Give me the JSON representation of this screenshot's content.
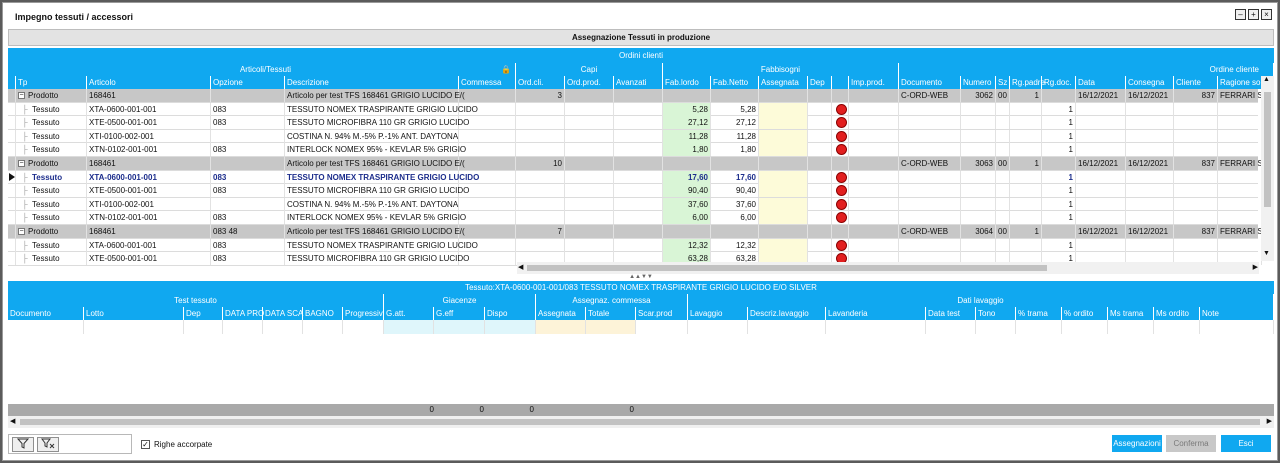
{
  "window": {
    "title": "Impegno tessuti / accessori",
    "controls": [
      "minimize",
      "restore",
      "close"
    ]
  },
  "panel": {
    "title": "Assegnazione Tessuti  in produzione"
  },
  "upper": {
    "section_title": "Ordini clienti",
    "groups": {
      "articoli": "Articoli/Tessuti",
      "capi": "Capi",
      "fabbisogni": "Fabbisogni",
      "ordine": "Ordine cliente"
    },
    "columns": {
      "tp": "Tp",
      "articolo": "Articolo",
      "opzione": "Opzione",
      "descrizione": "Descrizione",
      "commessa": "Commessa",
      "ord_cli": "Ord.cli.",
      "ord_prod": "Ord.prod.",
      "avanzati": "Avanzati",
      "fab_lordo": "Fab.lordo",
      "fab_netto": "Fab.Netto",
      "assegnata": "Assegnata",
      "dep": "Dep",
      "imp_prod": "Imp.prod.",
      "documento": "Documento",
      "numero": "Numero",
      "sz": "Sz",
      "rg_padre": "Rg.padre",
      "rg_doc": "Rg.doc.",
      "data": "Data",
      "consegna": "Consegna",
      "cliente": "Cliente",
      "ragione": "Ragione so"
    },
    "rows": [
      {
        "tp": "Prodotto",
        "articolo": "168461",
        "opzione": "",
        "descrizione": "Articolo per test TFS 168461 GRIGIO LUCIDO E/(",
        "ord_cli": "3",
        "fab_lordo": "",
        "fab_netto": "",
        "documento": "C-ORD-WEB",
        "numero": "3062",
        "sz": "00",
        "rg_padre": "1",
        "data": "16/12/2021",
        "consegna": "16/12/2021",
        "cliente": "837",
        "ragione": "FERRARI SI"
      },
      {
        "tp": "Tessuto",
        "articolo": "XTA-0600-001-001",
        "opzione": "083",
        "descrizione": "TESSUTO NOMEX TRASPIRANTE GRIGIO LUCIDO",
        "ord_cli": "",
        "fab_lordo": "5,28",
        "fab_netto": "5,28",
        "documento": "",
        "numero": "",
        "sz": "",
        "rg_padre": "",
        "rg_doc": "1",
        "data": "",
        "consegna": "",
        "cliente": "",
        "ragione": ""
      },
      {
        "tp": "Tessuto",
        "articolo": "XTE-0500-001-001",
        "opzione": "083",
        "descrizione": "TESSUTO MICROFIBRA 110 GR GRIGIO LUCIDO",
        "ord_cli": "",
        "fab_lordo": "27,12",
        "fab_netto": "27,12",
        "rg_doc": "1"
      },
      {
        "tp": "Tessuto",
        "articolo": "XTI-0100-002-001",
        "opzione": "",
        "descrizione": "COSTINA N. 94% M.-5% P.-1% ANT. DAYTONA",
        "ord_cli": "",
        "fab_lordo": "11,28",
        "fab_netto": "11,28",
        "rg_doc": "1"
      },
      {
        "tp": "Tessuto",
        "articolo": "XTN-0102-001-001",
        "opzione": "083",
        "descrizione": "INTERLOCK NOMEX 95% - KEVLAR 5%  GRIGIO",
        "ord_cli": "",
        "fab_lordo": "1,80",
        "fab_netto": "1,80",
        "rg_doc": "1"
      },
      {
        "tp": "Prodotto",
        "articolo": "168461",
        "opzione": "",
        "descrizione": "Articolo per test TFS 168461 GRIGIO LUCIDO E/(",
        "ord_cli": "10",
        "fab_lordo": "",
        "fab_netto": "",
        "documento": "C-ORD-WEB",
        "numero": "3063",
        "sz": "00",
        "rg_padre": "1",
        "data": "16/12/2021",
        "consegna": "16/12/2021",
        "cliente": "837",
        "ragione": "FERRARI SI"
      },
      {
        "tp": "Tessuto",
        "articolo": "XTA-0600-001-001",
        "opzione": "083",
        "descrizione": "TESSUTO NOMEX TRASPIRANTE GRIGIO LUCIDO",
        "ord_cli": "",
        "fab_lordo": "17,60",
        "fab_netto": "17,60",
        "rg_doc": "1"
      },
      {
        "tp": "Tessuto",
        "articolo": "XTE-0500-001-001",
        "opzione": "083",
        "descrizione": "TESSUTO MICROFIBRA 110 GR GRIGIO LUCIDO",
        "ord_cli": "",
        "fab_lordo": "90,40",
        "fab_netto": "90,40",
        "rg_doc": "1"
      },
      {
        "tp": "Tessuto",
        "articolo": "XTI-0100-002-001",
        "opzione": "",
        "descrizione": "COSTINA N. 94% M.-5% P.-1% ANT. DAYTONA",
        "ord_cli": "",
        "fab_lordo": "37,60",
        "fab_netto": "37,60",
        "rg_doc": "1"
      },
      {
        "tp": "Tessuto",
        "articolo": "XTN-0102-001-001",
        "opzione": "083",
        "descrizione": "INTERLOCK NOMEX 95% - KEVLAR 5%  GRIGIO",
        "ord_cli": "",
        "fab_lordo": "6,00",
        "fab_netto": "6,00",
        "rg_doc": "1"
      },
      {
        "tp": "Prodotto",
        "articolo": "168461",
        "opzione": "083 48",
        "descrizione": "Articolo per test TFS 168461 GRIGIO LUCIDO E/(",
        "ord_cli": "7",
        "fab_lordo": "",
        "fab_netto": "",
        "documento": "C-ORD-WEB",
        "numero": "3064",
        "sz": "00",
        "rg_padre": "1",
        "data": "16/12/2021",
        "consegna": "16/12/2021",
        "cliente": "837",
        "ragione": "FERRARI SI"
      },
      {
        "tp": "Tessuto",
        "articolo": "XTA-0600-001-001",
        "opzione": "083",
        "descrizione": "TESSUTO NOMEX TRASPIRANTE GRIGIO LUCIDO",
        "ord_cli": "",
        "fab_lordo": "12,32",
        "fab_netto": "12,32",
        "rg_doc": "1"
      },
      {
        "tp": "Tessuto",
        "articolo": "XTE-0500-001-001",
        "opzione": "083",
        "descrizione": "TESSUTO MICROFIBRA 110 GR GRIGIO LUCIDO",
        "ord_cli": "",
        "fab_lordo": "63,28",
        "fab_netto": "63,28",
        "rg_doc": "1"
      }
    ]
  },
  "detail": {
    "title": "Tessuto:XTA-0600-001-001/083 TESSUTO NOMEX TRASPIRANTE GRIGIO LUCIDO E/O SILVER",
    "groups": {
      "test": "Test tessuto",
      "giacenze": "Giacenze",
      "assegnaz": "Assegnaz. commessa",
      "lavaggio": "Dati lavaggio"
    },
    "columns": [
      "Documento",
      "Lotto",
      "Dep",
      "DATA PRO",
      "DATA SCA",
      "BAGNO",
      "Progressiv",
      "G.att.",
      "G.eff",
      "Dispo",
      "Assegnata",
      "Totale",
      "Scar.prod",
      "Lavaggio",
      "Descriz.lavaggio",
      "Lavanderia",
      "Data test",
      "Tono",
      "% trama",
      "% ordito",
      "Ms trama",
      "Ms ordito",
      "Note"
    ],
    "totals": [
      "0",
      "0",
      "0",
      "0"
    ]
  },
  "footer": {
    "righe_accorpate": "Righe accorpate",
    "buttons": {
      "assegnazioni": "Assegnazioni",
      "conferma": "Conferma",
      "esci": "Esci"
    }
  },
  "colors": {
    "header_blue": "#10a8f0",
    "product_row": "#c7c7c7",
    "fab_green": "#d9f5d6",
    "assegnata_yellow": "#fdfbd9",
    "status_red": "#e21f1f"
  }
}
